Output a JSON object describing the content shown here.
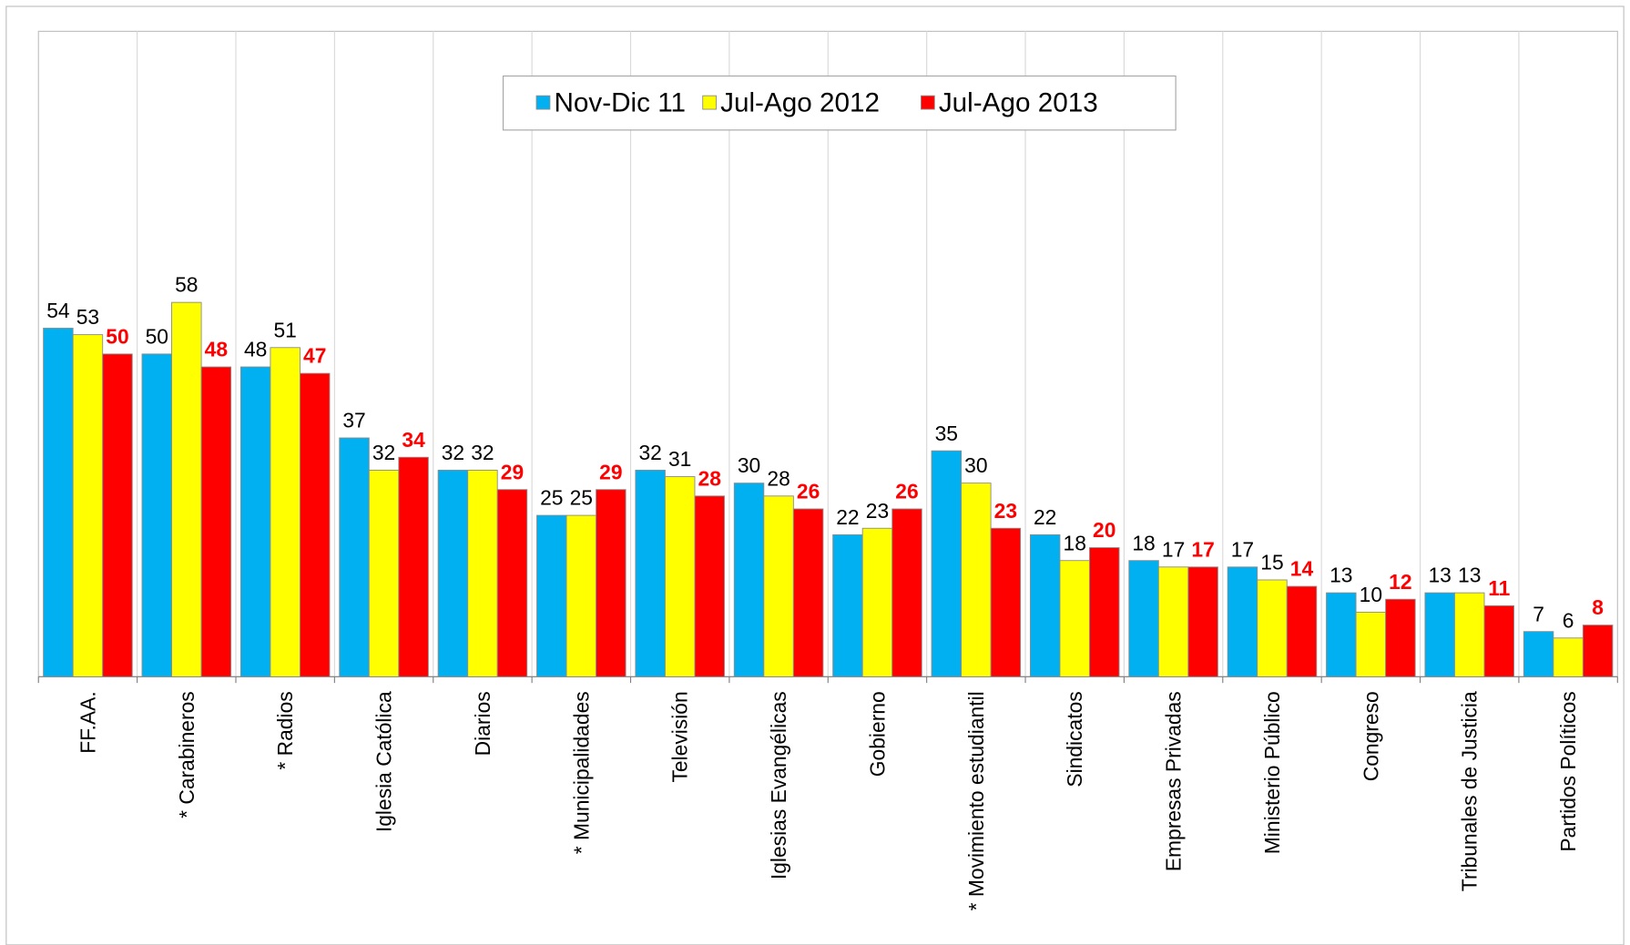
{
  "chart_data": {
    "type": "bar",
    "categories": [
      "FF.AA.",
      "* Carabineros",
      "* Radios",
      "Iglesia Católica",
      "Diarios",
      "* Municipalidades",
      "Televisión",
      "Iglesias Evangélicas",
      "Gobierno",
      "* Movimiento estudiantil",
      "Sindicatos",
      "Empresas Privadas",
      "Ministerio Público",
      "Congreso",
      "Tribunales de Justicia",
      "Partidos Políticos"
    ],
    "series": [
      {
        "name": "Nov-Dic 11",
        "color": "#00b0f0",
        "label_color": "#000000",
        "values": [
          54,
          50,
          48,
          37,
          32,
          25,
          32,
          30,
          22,
          35,
          22,
          18,
          17,
          13,
          13,
          7
        ]
      },
      {
        "name": "Jul-Ago 2012",
        "color": "#ffff00",
        "label_color": "#000000",
        "values": [
          53,
          58,
          51,
          32,
          32,
          25,
          31,
          28,
          23,
          30,
          18,
          17,
          15,
          10,
          13,
          6
        ]
      },
      {
        "name": "Jul-Ago 2013",
        "color": "#ff0000",
        "label_color": "#ff0000",
        "values": [
          50,
          48,
          47,
          34,
          29,
          29,
          28,
          26,
          26,
          23,
          20,
          17,
          14,
          12,
          11,
          8
        ]
      }
    ],
    "ylim": [
      0,
      100
    ],
    "legend": "top"
  }
}
